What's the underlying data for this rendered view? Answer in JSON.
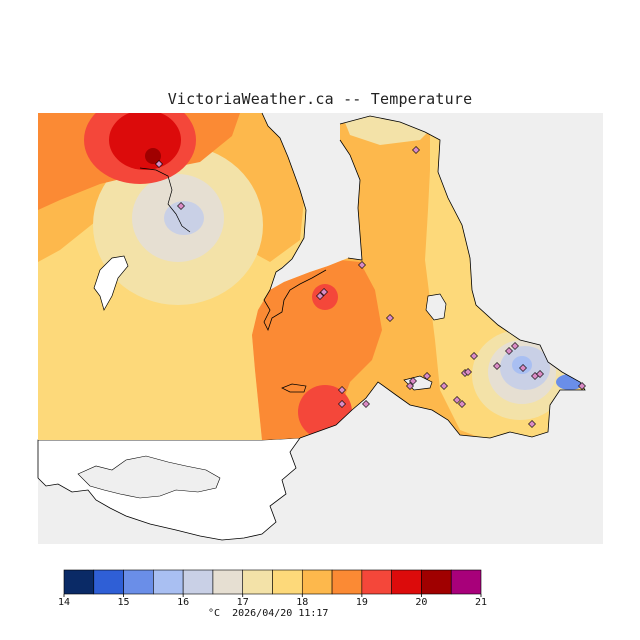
{
  "header": {
    "title": "VictoriaWeather.ca -- Temperature"
  },
  "legend": {
    "unit": "°C",
    "timestamp": "2026/04/20 11:17",
    "ticks": [
      "14",
      "15",
      "16",
      "17",
      "18",
      "19",
      "20",
      "21"
    ],
    "colors": [
      "#0a2a66",
      "#2f5fd6",
      "#6a8ee8",
      "#a9bff2",
      "#c9d0e6",
      "#e6dfd2",
      "#f3e2a8",
      "#fdd97a",
      "#fdb84c",
      "#fb8a34",
      "#f4473a",
      "#dc0b0b",
      "#a00000",
      "#a8007a"
    ]
  },
  "map": {
    "background_color": "#efefef",
    "station_marker_color": "#d98bc4",
    "station_count": 27
  }
}
